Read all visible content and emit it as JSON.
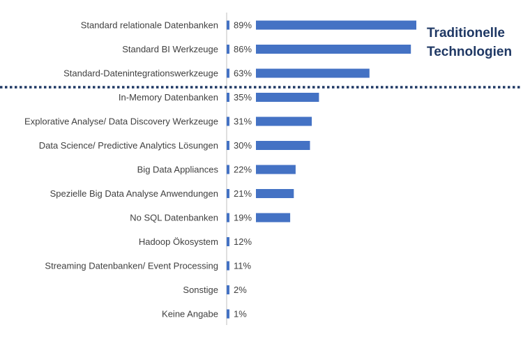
{
  "chart_data": {
    "type": "bar",
    "orientation": "horizontal",
    "title": "",
    "xlabel": "",
    "ylabel": "",
    "xlim": [
      0,
      100
    ],
    "grid": false,
    "legend": "none",
    "categories": [
      "Standard relationale Datenbanken",
      "Standard BI Werkzeuge",
      "Standard-Datenintegrationswerkzeuge",
      "In-Memory Datenbanken",
      "Explorative Analyse/ Data Discovery Werkzeuge",
      "Data Science/ Predictive Analytics Lösungen",
      "Big Data Appliances",
      "Spezielle Big Data Analyse Anwendungen",
      "No SQL Datenbanken",
      "Hadoop Ökosystem",
      "Streaming Datenbanken/ Event Processing",
      "Sonstige",
      "Keine Angabe"
    ],
    "values": [
      89,
      86,
      63,
      35,
      31,
      30,
      22,
      21,
      19,
      12,
      11,
      2,
      1
    ],
    "value_labels": [
      "89%",
      "86%",
      "63%",
      "35%",
      "31%",
      "30%",
      "22%",
      "21%",
      "19%",
      "12%",
      "11%",
      "2%",
      "1%"
    ],
    "annotation": {
      "lines": [
        "Traditionelle",
        "Technologien"
      ]
    },
    "divider_after_index": 2,
    "colors": {
      "bar": "#4472C4",
      "annotation": "#1F3864",
      "divider": "#1F3864",
      "axis": "#BFBFBF",
      "text": "#404040"
    }
  }
}
